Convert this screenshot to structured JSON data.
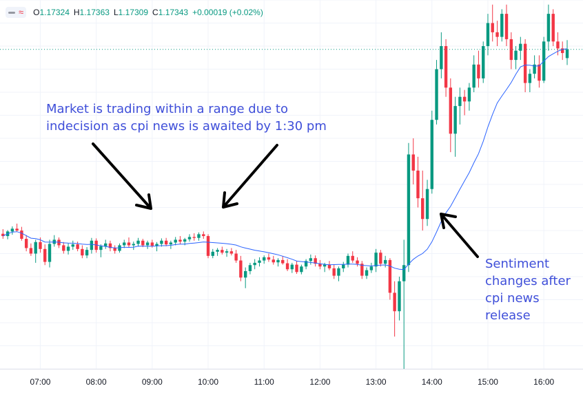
{
  "legend": {
    "open_label": "O",
    "open": "1.17324",
    "high_label": "H",
    "high": "1.17363",
    "low_label": "L",
    "low": "1.17309",
    "close_label": "C",
    "close": "1.17343",
    "change": "+0.00019 (+0.02%)",
    "up_color": "#089981"
  },
  "annotations": {
    "range_text": [
      "Market is trading within a range due to",
      "indecision as cpi news is awaited by 1:30 pm"
    ],
    "sentiment_text": [
      "Sentiment",
      "changes after",
      "cpi news",
      "release"
    ],
    "text_color": "#3f4fd9"
  },
  "colors": {
    "up": "#089981",
    "down": "#f23645",
    "ma": "#2962ff",
    "last_price_line": "#089981"
  },
  "chart_data": {
    "type": "candlestick",
    "title": "",
    "x_ticks": [
      "07:00",
      "08:00",
      "09:00",
      "10:00",
      "11:00",
      "12:00",
      "13:00",
      "14:00",
      "15:00",
      "16:00"
    ],
    "x_range_hours": [
      6.28,
      16.7
    ],
    "y_range": [
      1.1665,
      1.1745
    ],
    "grid": true,
    "bar_minutes": 5,
    "last_close": 1.17343,
    "candles": [
      [
        6.333,
        1.16943,
        1.16953,
        1.16932,
        1.16938
      ],
      [
        6.417,
        1.16938,
        1.16951,
        1.16931,
        1.16948
      ],
      [
        6.5,
        1.16948,
        1.16959,
        1.16941,
        1.16954
      ],
      [
        6.583,
        1.16954,
        1.16965,
        1.16948,
        1.1695
      ],
      [
        6.667,
        1.1695,
        1.16958,
        1.16928,
        1.16932
      ],
      [
        6.75,
        1.16932,
        1.1694,
        1.16905,
        1.16912
      ],
      [
        6.833,
        1.16912,
        1.16922,
        1.16895,
        1.169
      ],
      [
        6.917,
        1.169,
        1.1693,
        1.1688,
        1.16925
      ],
      [
        7.0,
        1.16925,
        1.16935,
        1.16902,
        1.1691
      ],
      [
        7.083,
        1.1691,
        1.1692,
        1.16875,
        1.16882
      ],
      [
        7.167,
        1.16882,
        1.1693,
        1.1687,
        1.16921
      ],
      [
        7.25,
        1.16921,
        1.1694,
        1.16915,
        1.1693
      ],
      [
        7.333,
        1.1693,
        1.16935,
        1.16912,
        1.16918
      ],
      [
        7.417,
        1.16918,
        1.16925,
        1.169,
        1.16906
      ],
      [
        7.5,
        1.16906,
        1.16922,
        1.16898,
        1.16915
      ],
      [
        7.583,
        1.16915,
        1.16928,
        1.16908,
        1.1692
      ],
      [
        7.667,
        1.1692,
        1.16926,
        1.16905,
        1.1691
      ],
      [
        7.75,
        1.1691,
        1.16918,
        1.1689,
        1.16896
      ],
      [
        7.833,
        1.16896,
        1.16914,
        1.1689,
        1.16908
      ],
      [
        7.917,
        1.16908,
        1.16934,
        1.169,
        1.16928
      ],
      [
        8.0,
        1.16928,
        1.16933,
        1.16902,
        1.16908
      ],
      [
        8.083,
        1.16908,
        1.1692,
        1.16892,
        1.16916
      ],
      [
        8.167,
        1.16916,
        1.1693,
        1.1691,
        1.16922
      ],
      [
        8.25,
        1.16922,
        1.16928,
        1.16905,
        1.16912
      ],
      [
        8.333,
        1.16912,
        1.16918,
        1.169,
        1.16906
      ],
      [
        8.417,
        1.16906,
        1.16922,
        1.16902,
        1.16918
      ],
      [
        8.5,
        1.16918,
        1.1693,
        1.16912,
        1.16924
      ],
      [
        8.583,
        1.16924,
        1.16935,
        1.16914,
        1.16918
      ],
      [
        8.667,
        1.16918,
        1.16926,
        1.16908,
        1.16921
      ],
      [
        8.75,
        1.16921,
        1.16934,
        1.16915,
        1.16928
      ],
      [
        8.833,
        1.16928,
        1.16932,
        1.16914,
        1.16918
      ],
      [
        8.917,
        1.16918,
        1.16928,
        1.1691,
        1.16924
      ],
      [
        9.0,
        1.16924,
        1.1693,
        1.16913,
        1.16917
      ],
      [
        9.083,
        1.16917,
        1.16925,
        1.16905,
        1.16921
      ],
      [
        9.167,
        1.16921,
        1.16933,
        1.16915,
        1.16928
      ],
      [
        9.25,
        1.16928,
        1.16934,
        1.16916,
        1.1692
      ],
      [
        9.333,
        1.1692,
        1.16928,
        1.1691,
        1.16924
      ],
      [
        9.417,
        1.16924,
        1.16936,
        1.16918,
        1.1693
      ],
      [
        9.5,
        1.1693,
        1.16938,
        1.1692,
        1.16926
      ],
      [
        9.583,
        1.16926,
        1.16934,
        1.16918,
        1.16931
      ],
      [
        9.667,
        1.16931,
        1.16942,
        1.16926,
        1.16936
      ],
      [
        9.75,
        1.16936,
        1.16944,
        1.16928,
        1.16934
      ],
      [
        9.833,
        1.16934,
        1.16946,
        1.16928,
        1.16942
      ],
      [
        9.917,
        1.16942,
        1.16948,
        1.16932,
        1.16938
      ],
      [
        10.0,
        1.16938,
        1.16942,
        1.1689,
        1.16895
      ],
      [
        10.083,
        1.16895,
        1.1691,
        1.1689,
        1.16904
      ],
      [
        10.167,
        1.16904,
        1.16912,
        1.16895,
        1.16908
      ],
      [
        10.25,
        1.16908,
        1.16915,
        1.16898,
        1.16902
      ],
      [
        10.333,
        1.16902,
        1.1691,
        1.16893,
        1.16905
      ],
      [
        10.417,
        1.16905,
        1.16912,
        1.16896,
        1.169
      ],
      [
        10.5,
        1.169,
        1.16908,
        1.1688,
        1.16885
      ],
      [
        10.583,
        1.16885,
        1.16895,
        1.1684,
        1.16848
      ],
      [
        10.667,
        1.16848,
        1.1687,
        1.16825,
        1.16862
      ],
      [
        10.75,
        1.16862,
        1.1688,
        1.16855,
        1.16875
      ],
      [
        10.833,
        1.16875,
        1.16888,
        1.16866,
        1.1688
      ],
      [
        10.917,
        1.1688,
        1.16892,
        1.16872,
        1.16885
      ],
      [
        11.0,
        1.16885,
        1.16896,
        1.16878,
        1.16892
      ],
      [
        11.083,
        1.16892,
        1.169,
        1.16882,
        1.16887
      ],
      [
        11.167,
        1.16887,
        1.16895,
        1.16876,
        1.16881
      ],
      [
        11.25,
        1.16881,
        1.1689,
        1.16872,
        1.16886
      ],
      [
        11.333,
        1.16886,
        1.16894,
        1.16876,
        1.16879
      ],
      [
        11.417,
        1.16879,
        1.16888,
        1.16862,
        1.16866
      ],
      [
        11.5,
        1.16866,
        1.1688,
        1.16858,
        1.16876
      ],
      [
        11.583,
        1.16876,
        1.16884,
        1.16856,
        1.1686
      ],
      [
        11.667,
        1.1686,
        1.16876,
        1.16855,
        1.16872
      ],
      [
        11.75,
        1.16872,
        1.16888,
        1.16866,
        1.16884
      ],
      [
        11.833,
        1.16884,
        1.16898,
        1.16876,
        1.1689
      ],
      [
        11.917,
        1.1689,
        1.16896,
        1.16872,
        1.16878
      ],
      [
        12.0,
        1.16878,
        1.16886,
        1.16866,
        1.16872
      ],
      [
        12.083,
        1.16872,
        1.1688,
        1.1686,
        1.16876
      ],
      [
        12.167,
        1.16876,
        1.16884,
        1.16864,
        1.16868
      ],
      [
        12.25,
        1.16868,
        1.16876,
        1.16845,
        1.16852
      ],
      [
        12.333,
        1.16852,
        1.16872,
        1.1684,
        1.16868
      ],
      [
        12.417,
        1.16868,
        1.16882,
        1.1686,
        1.16876
      ],
      [
        12.5,
        1.16876,
        1.169,
        1.1687,
        1.16895
      ],
      [
        12.583,
        1.16895,
        1.16905,
        1.1688,
        1.16885
      ],
      [
        12.667,
        1.16885,
        1.16892,
        1.16872,
        1.16878
      ],
      [
        12.75,
        1.16878,
        1.16884,
        1.16845,
        1.16852
      ],
      [
        12.833,
        1.16852,
        1.1687,
        1.16845,
        1.16864
      ],
      [
        12.917,
        1.16864,
        1.1688,
        1.16858,
        1.16872
      ],
      [
        13.0,
        1.16872,
        1.1691,
        1.1686,
        1.16902
      ],
      [
        13.083,
        1.16902,
        1.16908,
        1.16872,
        1.16878
      ],
      [
        13.167,
        1.16878,
        1.16895,
        1.1687,
        1.16886
      ],
      [
        13.25,
        1.16886,
        1.1689,
        1.168,
        1.16815
      ],
      [
        13.333,
        1.16815,
        1.1684,
        1.1672,
        1.16775
      ],
      [
        13.417,
        1.16775,
        1.1685,
        1.16755,
        1.1684
      ],
      [
        13.5,
        1.1684,
        1.1693,
        1.1665,
        1.16875
      ],
      [
        13.583,
        1.16875,
        1.1714,
        1.1686,
        1.17115
      ],
      [
        13.667,
        1.17115,
        1.1715,
        1.1705,
        1.1708
      ],
      [
        13.75,
        1.1708,
        1.1711,
        1.17,
        1.1702
      ],
      [
        13.833,
        1.1702,
        1.1708,
        1.1695,
        1.16975
      ],
      [
        13.917,
        1.16975,
        1.1706,
        1.1696,
        1.1704
      ],
      [
        14.0,
        1.1704,
        1.1721,
        1.1703,
        1.1719
      ],
      [
        14.083,
        1.1719,
        1.1732,
        1.1718,
        1.173
      ],
      [
        14.167,
        1.173,
        1.1738,
        1.1728,
        1.1735
      ],
      [
        14.25,
        1.1735,
        1.17365,
        1.1724,
        1.1726
      ],
      [
        14.333,
        1.1726,
        1.1728,
        1.1712,
        1.1716
      ],
      [
        14.417,
        1.1716,
        1.1724,
        1.1711,
        1.1722
      ],
      [
        14.5,
        1.1722,
        1.1726,
        1.1718,
        1.1724
      ],
      [
        14.583,
        1.1724,
        1.17255,
        1.172,
        1.1723
      ],
      [
        14.667,
        1.1723,
        1.1727,
        1.1721,
        1.1726
      ],
      [
        14.75,
        1.1726,
        1.1733,
        1.1725,
        1.1731
      ],
      [
        14.833,
        1.1731,
        1.1734,
        1.1726,
        1.1728
      ],
      [
        14.917,
        1.1728,
        1.1736,
        1.1727,
        1.1735
      ],
      [
        15.0,
        1.1735,
        1.1742,
        1.1733,
        1.174
      ],
      [
        15.083,
        1.174,
        1.1744,
        1.1736,
        1.1738
      ],
      [
        15.167,
        1.1738,
        1.17405,
        1.1735,
        1.1737
      ],
      [
        15.25,
        1.1737,
        1.1743,
        1.1736,
        1.1742
      ],
      [
        15.333,
        1.1742,
        1.1744,
        1.1735,
        1.17365
      ],
      [
        15.417,
        1.17365,
        1.1738,
        1.173,
        1.1732
      ],
      [
        15.5,
        1.1732,
        1.1735,
        1.173,
        1.1734
      ],
      [
        15.583,
        1.1734,
        1.1737,
        1.1732,
        1.17355
      ],
      [
        15.667,
        1.17355,
        1.17365,
        1.1725,
        1.1727
      ],
      [
        15.75,
        1.1727,
        1.173,
        1.1725,
        1.1729
      ],
      [
        15.833,
        1.1729,
        1.1733,
        1.1728,
        1.1731
      ],
      [
        15.917,
        1.1731,
        1.1733,
        1.1726,
        1.17275
      ],
      [
        16.0,
        1.17275,
        1.1737,
        1.1727,
        1.1736
      ],
      [
        16.083,
        1.1736,
        1.1744,
        1.1734,
        1.1742
      ],
      [
        16.167,
        1.1742,
        1.1743,
        1.1735,
        1.1736
      ],
      [
        16.25,
        1.1736,
        1.1738,
        1.1733,
        1.17345
      ],
      [
        16.333,
        1.17345,
        1.1736,
        1.1732,
        1.17335
      ],
      [
        16.417,
        1.17324,
        1.17363,
        1.17309,
        1.17343
      ]
    ]
  }
}
